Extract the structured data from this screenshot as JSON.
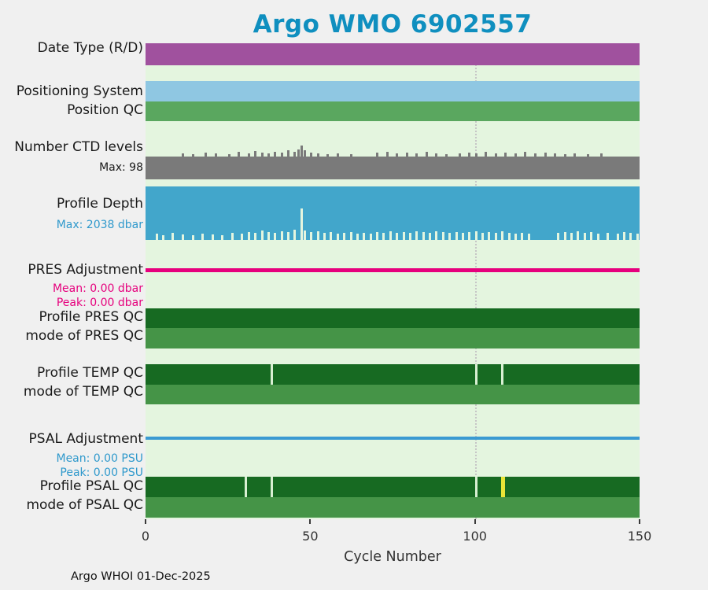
{
  "title": "Argo WMO 6902557",
  "footer": "Argo WHOI 01-Dec-2025",
  "colors": {
    "page_bg": "#f0f0f0",
    "plot_bg": "#e4f5df",
    "title": "#0f8fbf",
    "label_text": "#1a1a1a",
    "axis_text": "#333333",
    "reference_line": "#c6c6c6",
    "flag_light": "#d8efd2",
    "flag_yellow": "#e8e437"
  },
  "rows": [
    {
      "id": "date_type",
      "label": "Date Type (R/D)",
      "color": "#a0519e"
    },
    {
      "id": "positioning_system",
      "label": "Positioning System",
      "color": "#8fc7e2"
    },
    {
      "id": "position_qc",
      "label": "Position QC",
      "color": "#5aa75f"
    },
    {
      "id": "ctd_levels",
      "label": "Number CTD levels",
      "color": "#7a7a7a",
      "annotations": [
        {
          "text": "Max: 98",
          "color": "#1a1a1a"
        }
      ]
    },
    {
      "id": "profile_depth",
      "label": "Profile Depth",
      "color": "#42a6cb",
      "annotations": [
        {
          "text": "Max: 2038 dbar",
          "color": "#2f99cc"
        }
      ]
    },
    {
      "id": "pres_adjustment",
      "label": "PRES Adjustment",
      "color": "#e6007d",
      "annotations": [
        {
          "text": "Mean: 0.00 dbar",
          "color": "#e6007d"
        },
        {
          "text": "Peak: 0.00 dbar",
          "color": "#e6007d"
        }
      ]
    },
    {
      "id": "profile_pres_qc",
      "label": "Profile PRES QC",
      "color": "#176a22"
    },
    {
      "id": "mode_pres_qc",
      "label": "mode of PRES QC",
      "color": "#459447"
    },
    {
      "id": "profile_temp_qc",
      "label": "Profile TEMP QC",
      "color": "#176a22"
    },
    {
      "id": "mode_temp_qc",
      "label": "mode of TEMP QC",
      "color": "#459447"
    },
    {
      "id": "psal_adjustment",
      "label": "PSAL Adjustment",
      "color": "#3a9ad2",
      "annotations": [
        {
          "text": "Mean: 0.00 PSU",
          "color": "#2f99cc"
        },
        {
          "text": "Peak: 0.00 PSU",
          "color": "#2f99cc"
        }
      ]
    },
    {
      "id": "profile_psal_qc",
      "label": "Profile PSAL QC",
      "color": "#176a22"
    },
    {
      "id": "mode_psal_qc",
      "label": "mode of PSAL QC",
      "color": "#459447"
    }
  ],
  "chart_data": {
    "type": "status-strips",
    "title": "Argo WMO 6902557",
    "x": {
      "label": "Cycle Number",
      "min": 0,
      "max": 150,
      "ticks": [
        0,
        50,
        100,
        150
      ]
    },
    "reference_line_cycle": 100,
    "strips": [
      {
        "label": "Date Type (R/D)",
        "representation": "solid-band"
      },
      {
        "label": "Positioning System",
        "representation": "solid-band"
      },
      {
        "label": "Position QC",
        "representation": "solid-band"
      },
      {
        "label": "Number CTD levels",
        "representation": "bar-heights",
        "max": 98,
        "spikes_above_band": [
          [
            11,
            4
          ],
          [
            14,
            3
          ],
          [
            18,
            5
          ],
          [
            21,
            4
          ],
          [
            25,
            3
          ],
          [
            28,
            6
          ],
          [
            31,
            4
          ],
          [
            33,
            7
          ],
          [
            35,
            5
          ],
          [
            37,
            4
          ],
          [
            39,
            6
          ],
          [
            41,
            5
          ],
          [
            43,
            8
          ],
          [
            45,
            6
          ],
          [
            46,
            9
          ],
          [
            47,
            14
          ],
          [
            48,
            8
          ],
          [
            50,
            5
          ],
          [
            52,
            4
          ],
          [
            55,
            3
          ],
          [
            58,
            4
          ],
          [
            62,
            3
          ],
          [
            70,
            5
          ],
          [
            73,
            6
          ],
          [
            76,
            4
          ],
          [
            79,
            5
          ],
          [
            82,
            4
          ],
          [
            85,
            6
          ],
          [
            88,
            4
          ],
          [
            91,
            3
          ],
          [
            95,
            4
          ],
          [
            98,
            5
          ],
          [
            100,
            4
          ],
          [
            103,
            6
          ],
          [
            106,
            4
          ],
          [
            109,
            5
          ],
          [
            112,
            4
          ],
          [
            115,
            6
          ],
          [
            118,
            4
          ],
          [
            121,
            5
          ],
          [
            124,
            4
          ],
          [
            127,
            3
          ],
          [
            130,
            4
          ],
          [
            134,
            3
          ],
          [
            138,
            4
          ]
        ]
      },
      {
        "label": "Profile Depth",
        "representation": "bar-heights",
        "max_dbar": 2038,
        "shallow_notches": [
          [
            3,
            8
          ],
          [
            5,
            6
          ],
          [
            8,
            9
          ],
          [
            11,
            7
          ],
          [
            14,
            6
          ],
          [
            17,
            8
          ],
          [
            20,
            7
          ],
          [
            23,
            6
          ],
          [
            26,
            9
          ],
          [
            29,
            8
          ],
          [
            31,
            10
          ],
          [
            33,
            9
          ],
          [
            35,
            12
          ],
          [
            37,
            10
          ],
          [
            39,
            9
          ],
          [
            41,
            11
          ],
          [
            43,
            10
          ],
          [
            45,
            13
          ],
          [
            47,
            40
          ],
          [
            48,
            12
          ],
          [
            50,
            10
          ],
          [
            52,
            11
          ],
          [
            54,
            9
          ],
          [
            56,
            10
          ],
          [
            58,
            8
          ],
          [
            60,
            9
          ],
          [
            62,
            10
          ],
          [
            64,
            8
          ],
          [
            66,
            9
          ],
          [
            68,
            8
          ],
          [
            70,
            10
          ],
          [
            72,
            9
          ],
          [
            74,
            11
          ],
          [
            76,
            9
          ],
          [
            78,
            10
          ],
          [
            80,
            9
          ],
          [
            82,
            11
          ],
          [
            84,
            10
          ],
          [
            86,
            9
          ],
          [
            88,
            11
          ],
          [
            90,
            10
          ],
          [
            92,
            9
          ],
          [
            94,
            10
          ],
          [
            96,
            9
          ],
          [
            98,
            10
          ],
          [
            100,
            11
          ],
          [
            102,
            9
          ],
          [
            104,
            10
          ],
          [
            106,
            9
          ],
          [
            108,
            11
          ],
          [
            110,
            9
          ],
          [
            112,
            8
          ],
          [
            114,
            9
          ],
          [
            116,
            8
          ],
          [
            125,
            9
          ],
          [
            127,
            10
          ],
          [
            129,
            9
          ],
          [
            131,
            11
          ],
          [
            133,
            9
          ],
          [
            135,
            10
          ],
          [
            137,
            8
          ],
          [
            140,
            9
          ],
          [
            143,
            8
          ],
          [
            145,
            10
          ],
          [
            147,
            9
          ],
          [
            149,
            8
          ]
        ]
      },
      {
        "label": "PRES Adjustment",
        "representation": "flat-line",
        "mean_dbar": 0.0,
        "peak_dbar": 0.0
      },
      {
        "label": "Profile PRES QC",
        "representation": "solid-band",
        "flags": []
      },
      {
        "label": "mode of PRES QC",
        "representation": "solid-band"
      },
      {
        "label": "Profile TEMP QC",
        "representation": "solid-band",
        "flags": [
          {
            "cycle": 38
          },
          {
            "cycle": 100
          },
          {
            "cycle": 108
          }
        ]
      },
      {
        "label": "mode of TEMP QC",
        "representation": "solid-band"
      },
      {
        "label": "PSAL Adjustment",
        "representation": "flat-line",
        "mean_psu": 0.0,
        "peak_psu": 0.0
      },
      {
        "label": "Profile PSAL QC",
        "representation": "solid-band",
        "flags": [
          {
            "cycle": 30
          },
          {
            "cycle": 38
          },
          {
            "cycle": 100
          },
          {
            "cycle": 108,
            "highlight": "yellow"
          }
        ]
      },
      {
        "label": "mode of PSAL QC",
        "representation": "solid-band"
      }
    ]
  }
}
